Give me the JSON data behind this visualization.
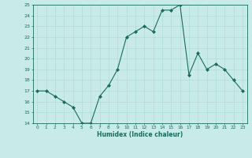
{
  "x": [
    0,
    1,
    2,
    3,
    4,
    5,
    6,
    7,
    8,
    9,
    10,
    11,
    12,
    13,
    14,
    15,
    16,
    17,
    18,
    19,
    20,
    21,
    22,
    23
  ],
  "y": [
    17,
    17,
    16.5,
    16,
    15.5,
    14,
    14,
    16.5,
    17.5,
    19,
    22,
    22.5,
    23,
    22.5,
    24.5,
    24.5,
    25,
    18.5,
    20.5,
    19,
    19.5,
    19,
    18,
    17
  ],
  "xlabel": "Humidex (Indice chaleur)",
  "ylim": [
    14,
    25
  ],
  "xlim": [
    -0.5,
    23.5
  ],
  "yticks": [
    14,
    15,
    16,
    17,
    18,
    19,
    20,
    21,
    22,
    23,
    24,
    25
  ],
  "xticks": [
    0,
    1,
    2,
    3,
    4,
    5,
    6,
    7,
    8,
    9,
    10,
    11,
    12,
    13,
    14,
    15,
    16,
    17,
    18,
    19,
    20,
    21,
    22,
    23
  ],
  "line_color": "#1a6b5e",
  "marker_color": "#1a6b5e",
  "bg_color": "#c8ebe8",
  "grid_color": "#a8d8d4",
  "tick_color": "#1a6b5e",
  "label_color": "#1a6b5e"
}
